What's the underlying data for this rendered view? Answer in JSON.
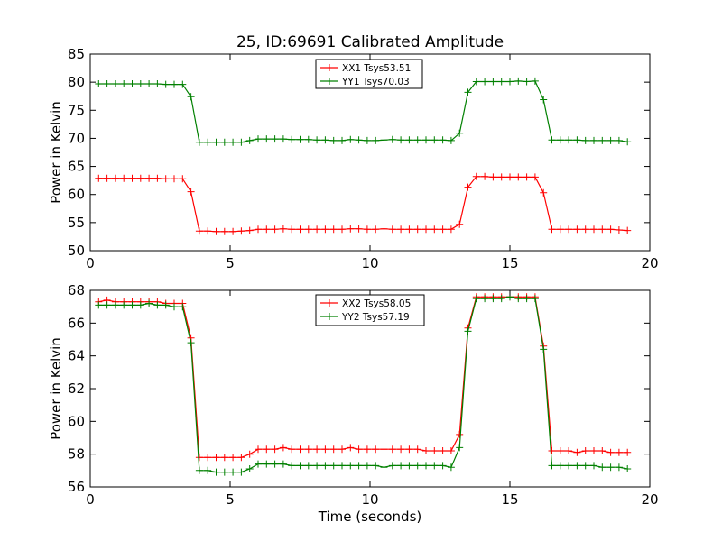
{
  "figure": {
    "title": "25, ID:69691 Calibrated Amplitude"
  },
  "chart_data": [
    {
      "type": "line",
      "title": "25, ID:69691 Calibrated Amplitude",
      "xlabel": "",
      "ylabel": "Power in Kelvin",
      "xlim": [
        0,
        20
      ],
      "ylim": [
        50,
        85
      ],
      "xticks": [
        0,
        5,
        10,
        15,
        20
      ],
      "yticks": [
        50,
        55,
        60,
        65,
        70,
        75,
        80,
        85
      ],
      "grid": false,
      "legend_position": "top-center",
      "x": [
        0.3,
        0.6,
        0.9,
        1.2,
        1.5,
        1.8,
        2.1,
        2.4,
        2.7,
        3.0,
        3.3,
        3.6,
        3.9,
        4.2,
        4.5,
        4.8,
        5.1,
        5.4,
        5.7,
        6.0,
        6.3,
        6.6,
        6.9,
        7.2,
        7.5,
        7.8,
        8.1,
        8.4,
        8.7,
        9.0,
        9.3,
        9.6,
        9.9,
        10.2,
        10.5,
        10.8,
        11.1,
        11.4,
        11.7,
        12.0,
        12.3,
        12.6,
        12.9,
        13.2,
        13.5,
        13.8,
        14.1,
        14.4,
        14.7,
        15.0,
        15.3,
        15.6,
        15.9,
        16.2,
        16.5,
        16.8,
        17.1,
        17.4,
        17.7,
        18.0,
        18.3,
        18.6,
        18.9,
        19.2
      ],
      "series": [
        {
          "name": "XX1 Tsys53.51",
          "color": "#ff0000",
          "values": [
            62.9,
            62.9,
            62.9,
            62.9,
            62.9,
            62.9,
            62.9,
            62.9,
            62.8,
            62.8,
            62.8,
            60.5,
            53.5,
            53.5,
            53.4,
            53.4,
            53.4,
            53.5,
            53.6,
            53.8,
            53.8,
            53.8,
            53.9,
            53.8,
            53.8,
            53.8,
            53.8,
            53.8,
            53.8,
            53.8,
            53.9,
            53.9,
            53.8,
            53.8,
            53.9,
            53.8,
            53.8,
            53.8,
            53.8,
            53.8,
            53.8,
            53.8,
            53.8,
            54.7,
            61.3,
            63.2,
            63.2,
            63.1,
            63.1,
            63.1,
            63.1,
            63.1,
            63.1,
            60.3,
            53.8,
            53.8,
            53.8,
            53.8,
            53.8,
            53.8,
            53.8,
            53.8,
            53.7,
            53.6
          ]
        },
        {
          "name": "YY1 Tsys70.03",
          "color": "#008000",
          "values": [
            79.7,
            79.7,
            79.7,
            79.7,
            79.7,
            79.7,
            79.7,
            79.7,
            79.6,
            79.6,
            79.6,
            77.4,
            69.3,
            69.3,
            69.3,
            69.3,
            69.3,
            69.3,
            69.6,
            69.9,
            69.9,
            69.9,
            69.9,
            69.8,
            69.8,
            69.8,
            69.7,
            69.7,
            69.6,
            69.6,
            69.8,
            69.7,
            69.6,
            69.6,
            69.7,
            69.8,
            69.7,
            69.7,
            69.7,
            69.7,
            69.7,
            69.7,
            69.6,
            70.9,
            78.2,
            80.1,
            80.1,
            80.1,
            80.1,
            80.1,
            80.2,
            80.1,
            80.2,
            76.9,
            69.7,
            69.7,
            69.7,
            69.7,
            69.6,
            69.6,
            69.6,
            69.6,
            69.6,
            69.4
          ]
        }
      ]
    },
    {
      "type": "line",
      "title": "",
      "xlabel": "Time (seconds)",
      "ylabel": "Power in Kelvin",
      "xlim": [
        0,
        20
      ],
      "ylim": [
        56,
        68
      ],
      "xticks": [
        0,
        5,
        10,
        15,
        20
      ],
      "yticks": [
        56,
        58,
        60,
        62,
        64,
        66,
        68
      ],
      "grid": false,
      "legend_position": "top-center",
      "x": [
        0.3,
        0.6,
        0.9,
        1.2,
        1.5,
        1.8,
        2.1,
        2.4,
        2.7,
        3.0,
        3.3,
        3.6,
        3.9,
        4.2,
        4.5,
        4.8,
        5.1,
        5.4,
        5.7,
        6.0,
        6.3,
        6.6,
        6.9,
        7.2,
        7.5,
        7.8,
        8.1,
        8.4,
        8.7,
        9.0,
        9.3,
        9.6,
        9.9,
        10.2,
        10.5,
        10.8,
        11.1,
        11.4,
        11.7,
        12.0,
        12.3,
        12.6,
        12.9,
        13.2,
        13.5,
        13.8,
        14.1,
        14.4,
        14.7,
        15.0,
        15.3,
        15.6,
        15.9,
        16.2,
        16.5,
        16.8,
        17.1,
        17.4,
        17.7,
        18.0,
        18.3,
        18.6,
        18.9,
        19.2
      ],
      "series": [
        {
          "name": "XX2 Tsys58.05",
          "color": "#ff0000",
          "values": [
            67.3,
            67.4,
            67.3,
            67.3,
            67.3,
            67.3,
            67.3,
            67.3,
            67.2,
            67.2,
            67.2,
            65.1,
            57.8,
            57.8,
            57.8,
            57.8,
            57.8,
            57.8,
            58.0,
            58.3,
            58.3,
            58.3,
            58.4,
            58.3,
            58.3,
            58.3,
            58.3,
            58.3,
            58.3,
            58.3,
            58.4,
            58.3,
            58.3,
            58.3,
            58.3,
            58.3,
            58.3,
            58.3,
            58.3,
            58.2,
            58.2,
            58.2,
            58.2,
            59.2,
            65.7,
            67.6,
            67.6,
            67.6,
            67.6,
            67.6,
            67.6,
            67.6,
            67.6,
            64.6,
            58.2,
            58.2,
            58.2,
            58.1,
            58.2,
            58.2,
            58.2,
            58.1,
            58.1,
            58.1
          ]
        },
        {
          "name": "YY2 Tsys57.19",
          "color": "#008000",
          "values": [
            67.1,
            67.1,
            67.1,
            67.1,
            67.1,
            67.1,
            67.2,
            67.1,
            67.1,
            67.0,
            67.0,
            64.8,
            57.0,
            57.0,
            56.9,
            56.9,
            56.9,
            56.9,
            57.1,
            57.4,
            57.4,
            57.4,
            57.4,
            57.3,
            57.3,
            57.3,
            57.3,
            57.3,
            57.3,
            57.3,
            57.3,
            57.3,
            57.3,
            57.3,
            57.2,
            57.3,
            57.3,
            57.3,
            57.3,
            57.3,
            57.3,
            57.3,
            57.2,
            58.4,
            65.5,
            67.5,
            67.5,
            67.5,
            67.5,
            67.6,
            67.5,
            67.5,
            67.5,
            64.4,
            57.3,
            57.3,
            57.3,
            57.3,
            57.3,
            57.3,
            57.2,
            57.2,
            57.2,
            57.1
          ]
        }
      ]
    }
  ]
}
